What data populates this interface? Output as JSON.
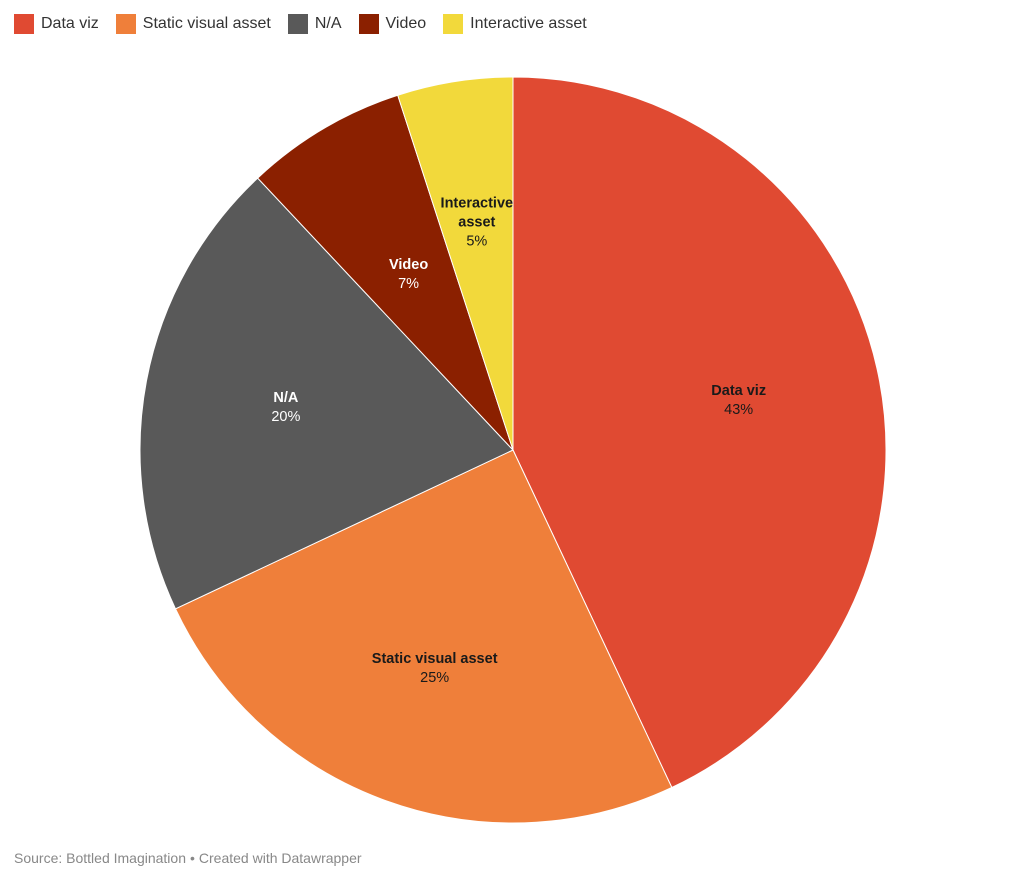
{
  "chart_data": {
    "type": "pie",
    "categories": [
      "Data viz",
      "Static visual asset",
      "N/A",
      "Video",
      "Interactive asset"
    ],
    "values": [
      43,
      25,
      20,
      7,
      5
    ],
    "value_labels": [
      "43%",
      "25%",
      "20%",
      "7%",
      "5%"
    ],
    "slice_label_lines": [
      [
        "Data viz"
      ],
      [
        "Static visual asset"
      ],
      [
        "N/A"
      ],
      [
        "Video"
      ],
      [
        "Interactive",
        "asset"
      ]
    ],
    "unit": "%",
    "colors": [
      "#e04a32",
      "#ef7f3a",
      "#595959",
      "#8b2000",
      "#f2d93b"
    ],
    "label_text_colors": [
      "#1a1a1a",
      "#1a1a1a",
      "#ffffff",
      "#ffffff",
      "#1a1a1a"
    ],
    "start": "12 o'clock, clockwise",
    "legend_placement": "top-left",
    "title": "",
    "xlabel": "",
    "ylabel": ""
  },
  "footer": {
    "source": "Source: Bottled Imagination",
    "separator": "•",
    "credit": "Created with Datawrapper"
  }
}
